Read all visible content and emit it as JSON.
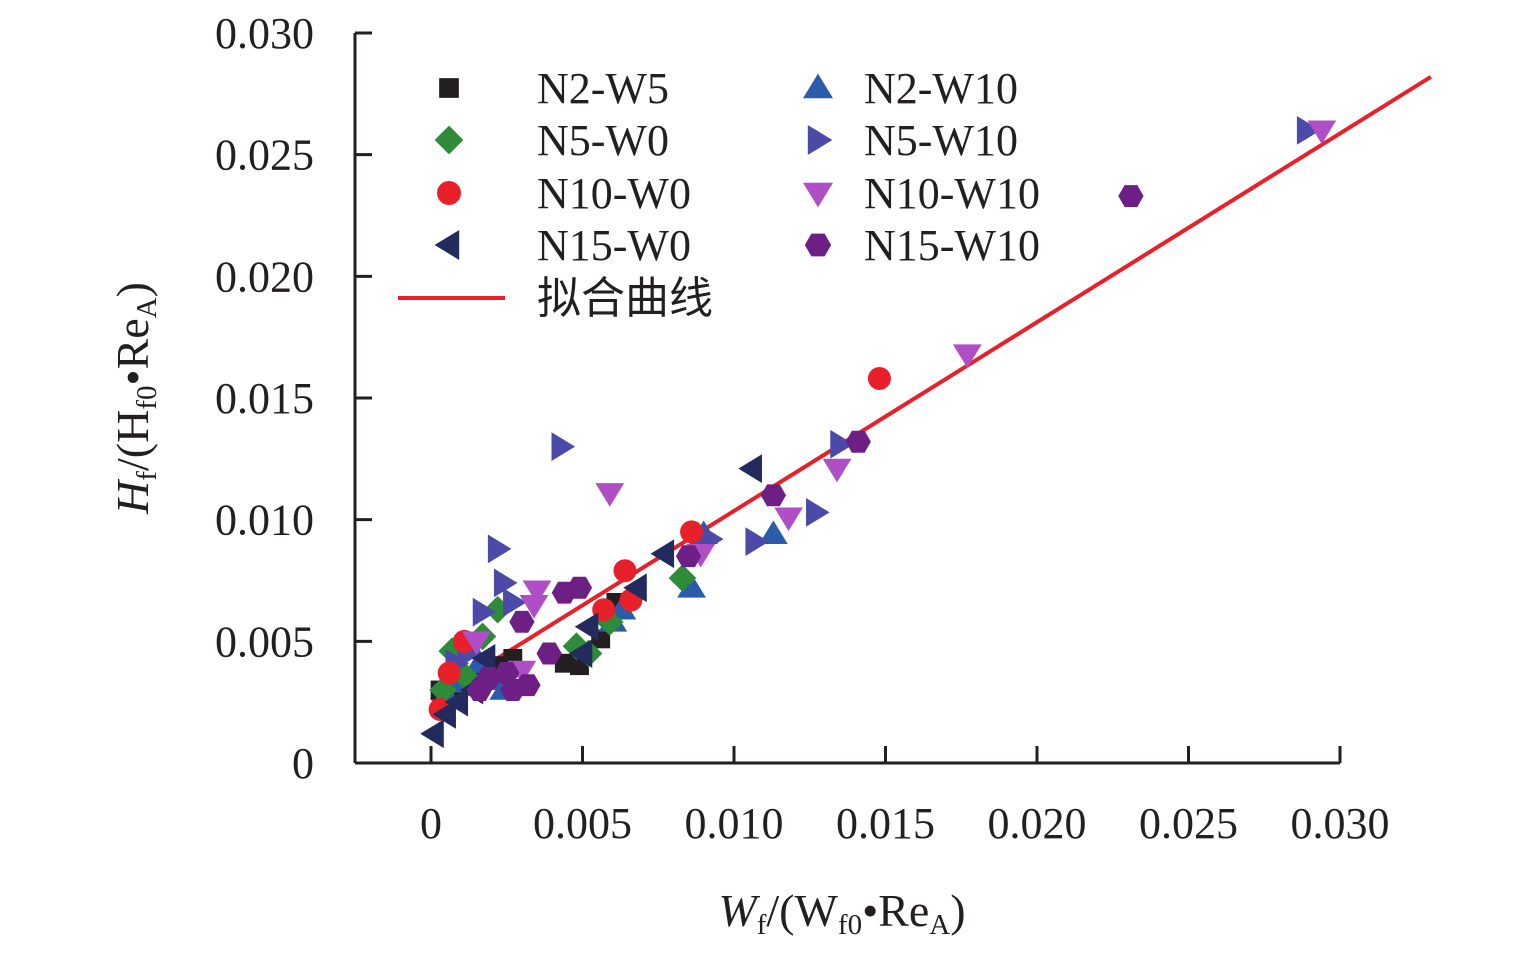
{
  "chart_data": {
    "type": "scatter",
    "xlim": [
      -0.0025,
      0.03
    ],
    "ylim": [
      0,
      0.03
    ],
    "x_ticks": [
      "0",
      "0.005",
      "0.010",
      "0.015",
      "0.020",
      "0.025",
      "0.030"
    ],
    "y_ticks": [
      "0",
      "0.005",
      "0.010",
      "0.015",
      "0.020",
      "0.025",
      "0.030"
    ],
    "xlabel": {
      "main": "W",
      "sub1": "f",
      "mid": "/(W",
      "sub2": "f0",
      "dot": "•Re",
      "sub3": "A",
      "close": ")"
    },
    "ylabel": {
      "main": "H",
      "sub1": "f",
      "mid": "/(H",
      "sub2": "f0",
      "dot": "•Re",
      "sub3": "A",
      "close": ")"
    },
    "legend_position": "top-left",
    "fit_label": "拟合曲线",
    "fit_color": "#e8202a",
    "fit_line": [
      [
        0.0,
        0.0026
      ],
      [
        0.033,
        0.0282
      ]
    ],
    "series": [
      {
        "name": "N2-W5",
        "marker": "square",
        "color": "#231f20",
        "points": [
          [
            0.0003,
            0.003
          ],
          [
            0.0006,
            0.0035
          ],
          [
            0.0009,
            0.0028
          ],
          [
            0.0013,
            0.0033
          ],
          [
            0.0017,
            0.0037
          ],
          [
            0.0021,
            0.004
          ],
          [
            0.0027,
            0.0043
          ],
          [
            0.0044,
            0.0041
          ],
          [
            0.0049,
            0.004
          ],
          [
            0.0056,
            0.0051
          ],
          [
            0.0061,
            0.0066
          ]
        ]
      },
      {
        "name": "N2-W10",
        "marker": "triangle-up",
        "color": "#2a5caa",
        "points": [
          [
            0.0005,
            0.0028
          ],
          [
            0.001,
            0.0033
          ],
          [
            0.0016,
            0.0041
          ],
          [
            0.0021,
            0.0034
          ],
          [
            0.0024,
            0.003
          ],
          [
            0.006,
            0.0058
          ],
          [
            0.0063,
            0.0063
          ],
          [
            0.0086,
            0.0072
          ],
          [
            0.009,
            0.0094
          ],
          [
            0.0113,
            0.0094
          ]
        ]
      },
      {
        "name": "N5-W0",
        "marker": "diamond",
        "color": "#2e8b3a",
        "points": [
          [
            0.0004,
            0.003
          ],
          [
            0.0007,
            0.0046
          ],
          [
            0.0011,
            0.0036
          ],
          [
            0.0017,
            0.0052
          ],
          [
            0.0022,
            0.0063
          ],
          [
            0.0048,
            0.0048
          ],
          [
            0.0052,
            0.0045
          ],
          [
            0.0059,
            0.0058
          ],
          [
            0.0083,
            0.0076
          ]
        ]
      },
      {
        "name": "N5-W10",
        "marker": "triangle-right",
        "color": "#4b4aa8",
        "points": [
          [
            0.0008,
            0.0041
          ],
          [
            0.0012,
            0.0045
          ],
          [
            0.0017,
            0.0062
          ],
          [
            0.0022,
            0.0088
          ],
          [
            0.0024,
            0.0074
          ],
          [
            0.0027,
            0.0066
          ],
          [
            0.0043,
            0.013
          ],
          [
            0.0092,
            0.0092
          ],
          [
            0.0107,
            0.0091
          ],
          [
            0.0127,
            0.0103
          ],
          [
            0.0135,
            0.0131
          ],
          [
            0.0289,
            0.026
          ]
        ]
      },
      {
        "name": "N10-W0",
        "marker": "circle",
        "color": "#e8202a",
        "points": [
          [
            0.0003,
            0.0022
          ],
          [
            0.0006,
            0.0037
          ],
          [
            0.0011,
            0.005
          ],
          [
            0.0057,
            0.0063
          ],
          [
            0.0064,
            0.0079
          ],
          [
            0.0066,
            0.0067
          ],
          [
            0.0086,
            0.0095
          ],
          [
            0.0148,
            0.0158
          ]
        ]
      },
      {
        "name": "N10-W10",
        "marker": "triangle-down",
        "color": "#b04fc5",
        "points": [
          [
            0.0015,
            0.005
          ],
          [
            0.003,
            0.0038
          ],
          [
            0.0034,
            0.0065
          ],
          [
            0.0035,
            0.0071
          ],
          [
            0.0059,
            0.0111
          ],
          [
            0.0089,
            0.0086
          ],
          [
            0.0118,
            0.0101
          ],
          [
            0.0134,
            0.0121
          ],
          [
            0.0177,
            0.0168
          ],
          [
            0.0294,
            0.026
          ]
        ]
      },
      {
        "name": "N15-W0",
        "marker": "triangle-left",
        "color": "#232a5e",
        "points": [
          [
            0.0001,
            0.0012
          ],
          [
            0.0005,
            0.002
          ],
          [
            0.0009,
            0.0025
          ],
          [
            0.0014,
            0.003
          ],
          [
            0.0018,
            0.0043
          ],
          [
            0.005,
            0.0045
          ],
          [
            0.0052,
            0.0056
          ],
          [
            0.0068,
            0.0072
          ],
          [
            0.0077,
            0.0086
          ],
          [
            0.0106,
            0.0121
          ]
        ]
      },
      {
        "name": "N15-W10",
        "marker": "hexagon",
        "color": "#6d1f86",
        "points": [
          [
            0.0016,
            0.003
          ],
          [
            0.0019,
            0.0035
          ],
          [
            0.0025,
            0.0037
          ],
          [
            0.0027,
            0.003
          ],
          [
            0.0032,
            0.0032
          ],
          [
            0.003,
            0.0058
          ],
          [
            0.0039,
            0.0045
          ],
          [
            0.0044,
            0.007
          ],
          [
            0.0049,
            0.0072
          ],
          [
            0.0085,
            0.0085
          ],
          [
            0.0113,
            0.011
          ],
          [
            0.0141,
            0.0132
          ],
          [
            0.0231,
            0.0233
          ]
        ]
      }
    ]
  }
}
